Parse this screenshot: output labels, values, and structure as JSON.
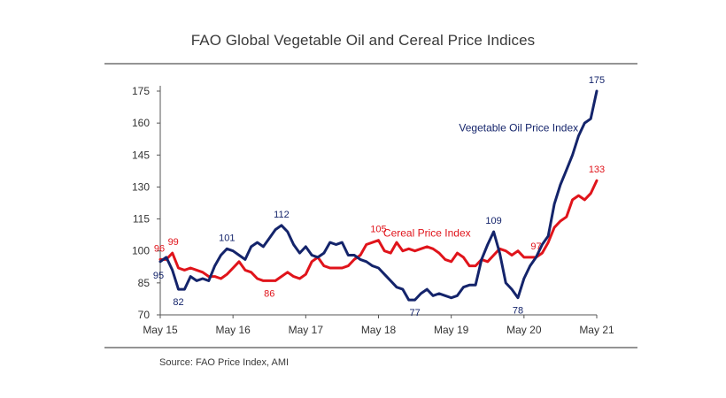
{
  "title": "FAO Global Vegetable Oil and Cereal Price Indices",
  "source": "Source: FAO Price Index, AMI",
  "colors": {
    "veg": "#14246b",
    "cereal": "#e0141b",
    "axis": "#555555",
    "text": "#333333"
  },
  "chart_data": {
    "type": "line",
    "title": "FAO Global Vegetable Oil and Cereal Price Indices",
    "xlabel": "",
    "ylabel": "",
    "ylim": [
      70,
      175
    ],
    "yticks": [
      70,
      85,
      100,
      115,
      130,
      145,
      160,
      175
    ],
    "xlim": [
      0,
      72
    ],
    "xticks": [
      {
        "x": 0,
        "label": "May 15"
      },
      {
        "x": 12,
        "label": "May 16"
      },
      {
        "x": 24,
        "label": "May 17"
      },
      {
        "x": 36,
        "label": "May 18"
      },
      {
        "x": 48,
        "label": "May 19"
      },
      {
        "x": 60,
        "label": "May 20"
      },
      {
        "x": 72,
        "label": "May 21"
      }
    ],
    "x_unit": "months since May 2015 (monthly data)",
    "series": [
      {
        "name": "Vegetable Oil Price Index",
        "color": "#14246b",
        "values": [
          95,
          97,
          91,
          82,
          82,
          88,
          86,
          87,
          86,
          93,
          98,
          101,
          100,
          98,
          96,
          102,
          104,
          102,
          106,
          110,
          112,
          109,
          103,
          99,
          102,
          98,
          97,
          99,
          104,
          103,
          104,
          98,
          98,
          96,
          95,
          93,
          92,
          89,
          86,
          83,
          82,
          77,
          77,
          80,
          82,
          79,
          80,
          79,
          78,
          79,
          83,
          84,
          84,
          96,
          103,
          109,
          99,
          85,
          82,
          78,
          87,
          93,
          97,
          103,
          107,
          122,
          131,
          138,
          145,
          154,
          160,
          162,
          175
        ]
      },
      {
        "name": "Cereal Price Index",
        "color": "#e0141b",
        "values": [
          96,
          96,
          99,
          92,
          91,
          92,
          91,
          90,
          88,
          88,
          87,
          89,
          92,
          95,
          91,
          90,
          87,
          86,
          86,
          86,
          88,
          90,
          88,
          87,
          89,
          95,
          97,
          93,
          92,
          92,
          92,
          93,
          96,
          98,
          103,
          104,
          105,
          100,
          99,
          104,
          100,
          101,
          100,
          101,
          102,
          101,
          99,
          96,
          95,
          99,
          97,
          93,
          93,
          96,
          95,
          98,
          101,
          100,
          98,
          100,
          97,
          97,
          97,
          99,
          104,
          111,
          114,
          116,
          124,
          126,
          124,
          127,
          133
        ]
      }
    ],
    "series_labels": [
      {
        "series": 0,
        "text": "Vegetable Oil Price Index",
        "at_x": 58
      },
      {
        "series": 1,
        "text": "Cereal Price Index",
        "at_x": 44
      }
    ],
    "data_labels": [
      {
        "series": 0,
        "x": 0,
        "value": 95,
        "text": "95",
        "pos": "below"
      },
      {
        "series": 0,
        "x": 3,
        "value": 82,
        "text": "82",
        "pos": "below"
      },
      {
        "series": 0,
        "x": 11,
        "value": 101,
        "text": "101",
        "pos": "above"
      },
      {
        "series": 0,
        "x": 20,
        "value": 112,
        "text": "112",
        "pos": "above"
      },
      {
        "series": 0,
        "x": 42,
        "value": 77,
        "text": "77",
        "pos": "below"
      },
      {
        "series": 0,
        "x": 55,
        "value": 109,
        "text": "109",
        "pos": "above"
      },
      {
        "series": 0,
        "x": 59,
        "value": 78,
        "text": "78",
        "pos": "below"
      },
      {
        "series": 0,
        "x": 72,
        "value": 175,
        "text": "175",
        "pos": "above"
      },
      {
        "series": 1,
        "x": 0,
        "value": 96,
        "text": "96",
        "pos": "above"
      },
      {
        "series": 1,
        "x": 2,
        "value": 99,
        "text": "99",
        "pos": "above"
      },
      {
        "series": 1,
        "x": 18,
        "value": 86,
        "text": "86",
        "pos": "below"
      },
      {
        "series": 1,
        "x": 36,
        "value": 105,
        "text": "105",
        "pos": "above"
      },
      {
        "series": 1,
        "x": 62,
        "value": 97,
        "text": "97",
        "pos": "above"
      },
      {
        "series": 1,
        "x": 72,
        "value": 133,
        "text": "133",
        "pos": "above"
      }
    ]
  }
}
